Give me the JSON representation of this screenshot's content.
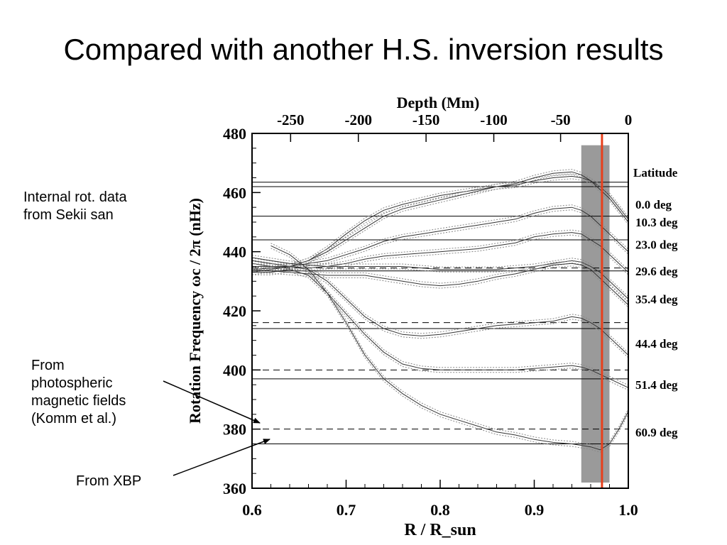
{
  "slide": {
    "title": "Compared with another H.S. inversion results",
    "notes": {
      "internal": [
        "Internal rot. data",
        "from Sekii san"
      ],
      "photospheric": [
        "From",
        "photospheric",
        "magnetic fields",
        "(Komm et al.)"
      ],
      "xbp": [
        "From XBP"
      ]
    }
  },
  "chart_data": {
    "type": "line",
    "xlabel": "R / R_sun",
    "x2label": "Depth (Mm)",
    "ylabel": "Rotation Frequency ωc / 2π (nHz)",
    "xlim": [
      0.6,
      1.0
    ],
    "ylim": [
      360,
      480
    ],
    "x_ticks": [
      "0.6",
      "0.7",
      "0.8",
      "0.9",
      "1.0"
    ],
    "y_ticks": [
      "360",
      "380",
      "400",
      "420",
      "440",
      "460",
      "480"
    ],
    "x2_ticks": [
      {
        "label": "-250",
        "r": 0.641
      },
      {
        "label": "-200",
        "r": 0.713
      },
      {
        "label": "-150",
        "r": 0.785
      },
      {
        "label": "-100",
        "r": 0.857
      },
      {
        "label": "-50",
        "r": 0.928
      },
      {
        "label": "0",
        "r": 1.0
      }
    ],
    "legend_title": "Latitude",
    "latitude_labels": [
      {
        "label": "0.0 deg",
        "y": 456
      },
      {
        "label": "10.3 deg",
        "y": 450
      },
      {
        "label": "23.0 deg",
        "y": 442.5
      },
      {
        "label": "29.6 deg",
        "y": 433.5
      },
      {
        "label": "35.4 deg",
        "y": 424
      },
      {
        "label": "44.4 deg",
        "y": 409
      },
      {
        "label": "51.4 deg",
        "y": 395
      },
      {
        "label": "60.9 deg",
        "y": 379
      }
    ],
    "solid_hlines": [
      463.5,
      462,
      452,
      444,
      433.5,
      414,
      397,
      375
    ],
    "dashed_hlines": [
      434.5,
      416,
      400,
      380
    ],
    "shaded_band": [
      0.95,
      0.98
    ],
    "marker_line": 0.972,
    "colors": {
      "band": "#9a9a9a",
      "marker": "#e8401c",
      "curve": "#333333",
      "error": "#888888"
    },
    "series": [
      {
        "x": [
          0.6,
          0.62,
          0.64,
          0.66,
          0.68,
          0.7,
          0.72,
          0.74,
          0.76,
          0.78,
          0.8,
          0.82,
          0.84,
          0.86,
          0.88,
          0.9,
          0.92,
          0.94,
          0.95,
          0.96,
          0.97,
          0.98,
          0.99,
          1.0
        ],
        "y": [
          433,
          434,
          435,
          437,
          441,
          446,
          450.5,
          454,
          456,
          457.5,
          459,
          460,
          461,
          462,
          462.5,
          464,
          465,
          465.5,
          465,
          464,
          462,
          459,
          455,
          451
        ]
      },
      {
        "x": [
          0.6,
          0.62,
          0.64,
          0.66,
          0.68,
          0.7,
          0.72,
          0.74,
          0.76,
          0.78,
          0.8,
          0.82,
          0.84,
          0.86,
          0.88,
          0.9,
          0.92,
          0.94,
          0.95,
          0.96,
          0.97,
          0.98,
          0.99,
          1.0
        ],
        "y": [
          434,
          434.5,
          435,
          437,
          440,
          444,
          448,
          452,
          454.5,
          456,
          457.5,
          459,
          460.5,
          462,
          463,
          465,
          466.5,
          467,
          466,
          464,
          461,
          458,
          454,
          450
        ]
      },
      {
        "x": [
          0.6,
          0.62,
          0.64,
          0.66,
          0.68,
          0.7,
          0.72,
          0.74,
          0.76,
          0.78,
          0.8,
          0.82,
          0.84,
          0.86,
          0.88,
          0.9,
          0.92,
          0.94,
          0.95,
          0.96,
          0.97,
          0.98,
          0.99,
          1.0
        ],
        "y": [
          436,
          435,
          435,
          436,
          437,
          439,
          441,
          443.5,
          445,
          446,
          447,
          448,
          449,
          450,
          451,
          453,
          454.5,
          455,
          454,
          452,
          449,
          446,
          443,
          440
        ]
      },
      {
        "x": [
          0.6,
          0.62,
          0.64,
          0.66,
          0.68,
          0.7,
          0.72,
          0.74,
          0.76,
          0.78,
          0.8,
          0.82,
          0.84,
          0.86,
          0.88,
          0.9,
          0.92,
          0.94,
          0.95,
          0.96,
          0.97,
          0.98,
          0.99,
          1.0
        ],
        "y": [
          437,
          436,
          435,
          434.5,
          435,
          436,
          437.5,
          438.5,
          439,
          439.5,
          440,
          440.5,
          441,
          442,
          443,
          445,
          446,
          446.5,
          446,
          444,
          442,
          439,
          436,
          433
        ]
      },
      {
        "x": [
          0.6,
          0.62,
          0.64,
          0.66,
          0.68,
          0.7,
          0.72,
          0.74,
          0.76,
          0.78,
          0.8,
          0.82,
          0.84,
          0.86,
          0.88,
          0.9,
          0.92,
          0.94,
          0.95,
          0.96,
          0.97,
          0.98,
          0.99,
          1.0
        ],
        "y": [
          438,
          437,
          436,
          435.5,
          435,
          435,
          435,
          435,
          435,
          434.5,
          434,
          434,
          434,
          434,
          434.5,
          435,
          436,
          437,
          436.5,
          435,
          433,
          430,
          427,
          424
        ]
      },
      {
        "x": [
          0.6,
          0.62,
          0.64,
          0.66,
          0.68,
          0.7,
          0.72,
          0.74,
          0.76,
          0.78,
          0.8,
          0.82,
          0.84,
          0.86,
          0.88,
          0.9,
          0.92,
          0.94,
          0.95,
          0.96,
          0.97,
          0.98,
          0.99,
          1.0
        ],
        "y": [
          434,
          433.5,
          433,
          432.5,
          432,
          432,
          432,
          431,
          430,
          429,
          428.5,
          429,
          430,
          431.5,
          432.5,
          434,
          435.5,
          436,
          435.5,
          434,
          431,
          428,
          425,
          422
        ]
      },
      {
        "x": [
          0.6,
          0.62,
          0.64,
          0.66,
          0.68,
          0.7,
          0.72,
          0.74,
          0.76,
          0.78,
          0.8,
          0.82,
          0.84,
          0.86,
          0.88,
          0.9,
          0.92,
          0.94,
          0.95,
          0.96,
          0.97,
          0.98,
          0.99,
          1.0
        ],
        "y": [
          435,
          435,
          435,
          434,
          430,
          424,
          418,
          414,
          412,
          411.5,
          412,
          413,
          414,
          415,
          415.5,
          416,
          416.5,
          418,
          417.5,
          416,
          414,
          411,
          408,
          405
        ]
      },
      {
        "x": [
          0.6,
          0.62,
          0.64,
          0.66,
          0.68,
          0.7,
          0.72,
          0.74,
          0.76,
          0.78,
          0.8,
          0.82,
          0.84,
          0.86,
          0.88,
          0.9,
          0.92,
          0.94,
          0.95,
          0.96,
          0.97,
          0.98,
          0.99,
          1.0
        ],
        "y": [
          433,
          433,
          434,
          432,
          426,
          419,
          412,
          406,
          402,
          400.5,
          400,
          400,
          400,
          400,
          400,
          400.5,
          401,
          401.5,
          401,
          400,
          398.5,
          397,
          395.5,
          394
        ]
      },
      {
        "x": [
          0.62,
          0.64,
          0.66,
          0.68,
          0.7,
          0.72,
          0.74,
          0.76,
          0.78,
          0.8,
          0.82,
          0.84,
          0.86,
          0.88,
          0.9,
          0.92,
          0.94,
          0.95,
          0.96,
          0.97,
          0.98,
          0.99,
          1.0
        ],
        "y": [
          442,
          439,
          434,
          426,
          416,
          405,
          397,
          392,
          388,
          385,
          383,
          381,
          379,
          378,
          376.5,
          375.5,
          375,
          374.5,
          374,
          373,
          375,
          380,
          386
        ]
      }
    ]
  }
}
